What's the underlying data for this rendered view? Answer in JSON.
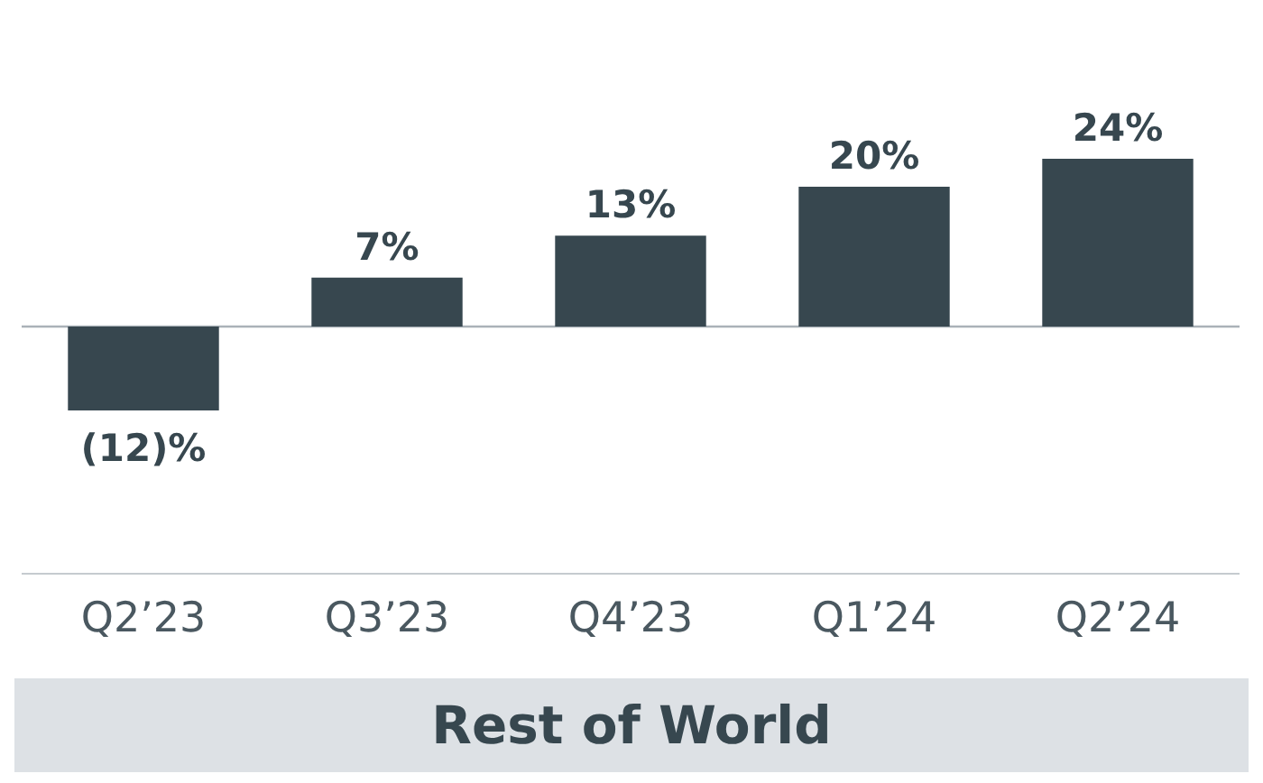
{
  "chart_data": {
    "type": "bar",
    "title": "Rest of World",
    "categories": [
      "Q2’23",
      "Q3’23",
      "Q4’23",
      "Q1’24",
      "Q2’24"
    ],
    "values": [
      -12,
      7,
      13,
      20,
      24
    ],
    "value_labels": [
      "(12)%",
      "7%",
      "13%",
      "20%",
      "24%"
    ],
    "color": "#37474f"
  }
}
